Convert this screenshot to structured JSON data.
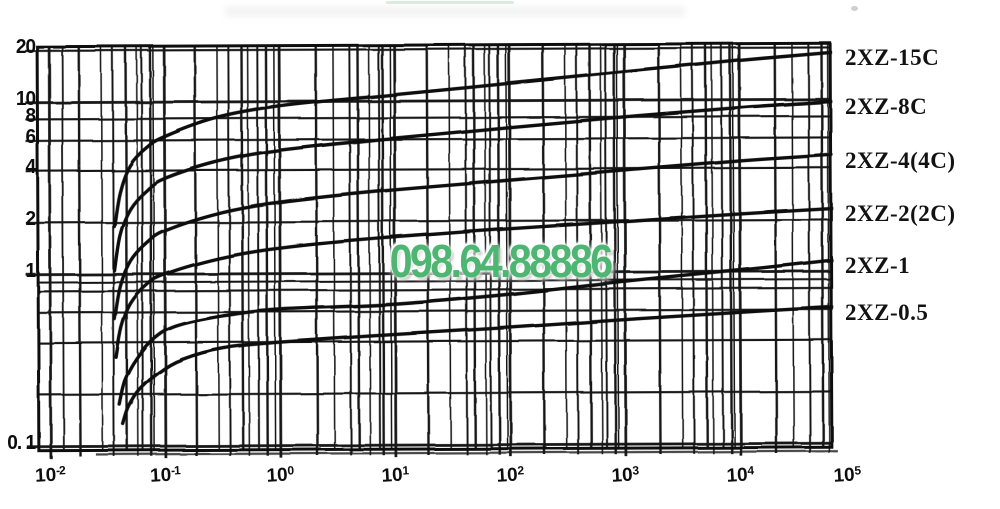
{
  "watermark": {
    "text": "098.64.88886",
    "color": "#4fb573"
  },
  "chart_data": {
    "type": "line",
    "title": "",
    "description_visible_text_only": "log-log pumping speed curves, six labeled series",
    "x_axis": {
      "scale": "log10",
      "range_log10": [
        -2.1,
        4.83
      ],
      "ticks": [
        {
          "base": "10",
          "exp": "-2",
          "log10": -2
        },
        {
          "base": "10",
          "exp": "-1",
          "log10": -1
        },
        {
          "base": "10",
          "exp": "0",
          "log10": 0
        },
        {
          "base": "10",
          "exp": "1",
          "log10": 1
        },
        {
          "base": "10",
          "exp": "2",
          "log10": 2
        },
        {
          "base": "10",
          "exp": "3",
          "log10": 3
        },
        {
          "base": "10",
          "exp": "4",
          "log10": 4
        },
        {
          "base": "10",
          "exp": "5",
          "log10": 5
        }
      ],
      "minor_multiples": [
        2,
        3,
        4,
        5,
        6,
        7,
        8,
        9
      ],
      "grid": true
    },
    "y_axis": {
      "scale": "log10",
      "range": [
        0.095,
        21
      ],
      "ticks": [
        {
          "label": "20",
          "value": 20
        },
        {
          "label": "10",
          "value": 10
        },
        {
          "label": "8",
          "value": 8
        },
        {
          "label": "6",
          "value": 6
        },
        {
          "label": "4",
          "value": 4
        },
        {
          "label": "2",
          "value": 2
        },
        {
          "label": "1",
          "value": 1
        },
        {
          "label": "0. 1",
          "value": 0.1
        }
      ],
      "major_values": [
        0.1,
        1,
        10
      ],
      "minor_values": [
        0.2,
        0.4,
        0.6,
        0.8,
        0.9,
        2,
        4,
        6,
        8,
        20
      ],
      "grid": true
    },
    "legend_position": "right",
    "series": [
      {
        "name": "2XZ-15C",
        "points_log10x_y": [
          [
            -1.44,
            1.9
          ],
          [
            -1.39,
            3.0
          ],
          [
            -1.3,
            4.3
          ],
          [
            -1.15,
            5.5
          ],
          [
            -1.0,
            6.3
          ],
          [
            -0.6,
            7.9
          ],
          [
            -0.2,
            9.0
          ],
          [
            0.3,
            9.9
          ],
          [
            1,
            10.9
          ],
          [
            2,
            12.6
          ],
          [
            3,
            14.6
          ],
          [
            4,
            16.9
          ],
          [
            4.8,
            18.7
          ]
        ]
      },
      {
        "name": "2XZ-8C",
        "points_log10x_y": [
          [
            -1.44,
            1.05
          ],
          [
            -1.39,
            1.7
          ],
          [
            -1.3,
            2.4
          ],
          [
            -1.15,
            3.1
          ],
          [
            -1.0,
            3.6
          ],
          [
            -0.6,
            4.4
          ],
          [
            -0.2,
            5.0
          ],
          [
            0.3,
            5.5
          ],
          [
            1,
            6.1
          ],
          [
            2,
            7.0
          ],
          [
            3,
            8.0
          ],
          [
            4,
            9.0
          ],
          [
            4.8,
            9.7
          ]
        ]
      },
      {
        "name": "2XZ-4(4C)",
        "points_log10x_y": [
          [
            -1.44,
            0.55
          ],
          [
            -1.39,
            0.85
          ],
          [
            -1.3,
            1.2
          ],
          [
            -1.15,
            1.55
          ],
          [
            -1.0,
            1.8
          ],
          [
            -0.6,
            2.2
          ],
          [
            -0.2,
            2.5
          ],
          [
            0.3,
            2.75
          ],
          [
            1,
            3.05
          ],
          [
            2,
            3.45
          ],
          [
            3,
            3.9
          ],
          [
            4,
            4.4
          ],
          [
            4.8,
            4.75
          ]
        ]
      },
      {
        "name": "2XZ-2(2C)",
        "points_log10x_y": [
          [
            -1.43,
            0.33
          ],
          [
            -1.38,
            0.5
          ],
          [
            -1.3,
            0.68
          ],
          [
            -1.15,
            0.88
          ],
          [
            -1.0,
            1.0
          ],
          [
            -0.6,
            1.2
          ],
          [
            -0.2,
            1.35
          ],
          [
            0.3,
            1.48
          ],
          [
            1,
            1.62
          ],
          [
            2,
            1.8
          ],
          [
            3,
            1.98
          ],
          [
            4,
            2.18
          ],
          [
            4.8,
            2.33
          ]
        ]
      },
      {
        "name": "2XZ-1",
        "points_log10x_y": [
          [
            -1.4,
            0.175
          ],
          [
            -1.35,
            0.24
          ],
          [
            -1.25,
            0.32
          ],
          [
            -1.1,
            0.42
          ],
          [
            -0.9,
            0.5
          ],
          [
            -0.5,
            0.57
          ],
          [
            0,
            0.62
          ],
          [
            1,
            0.66
          ],
          [
            2,
            0.75
          ],
          [
            3,
            0.88
          ],
          [
            4,
            1.02
          ],
          [
            4.8,
            1.16
          ]
        ]
      },
      {
        "name": "2XZ-0.5",
        "points_log10x_y": [
          [
            -1.37,
            0.135
          ],
          [
            -1.32,
            0.17
          ],
          [
            -1.22,
            0.215
          ],
          [
            -1.05,
            0.27
          ],
          [
            -0.85,
            0.32
          ],
          [
            -0.5,
            0.37
          ],
          [
            0,
            0.4
          ],
          [
            1,
            0.44
          ],
          [
            2,
            0.48
          ],
          [
            3,
            0.53
          ],
          [
            4,
            0.58
          ],
          [
            4.8,
            0.62
          ]
        ]
      }
    ]
  }
}
